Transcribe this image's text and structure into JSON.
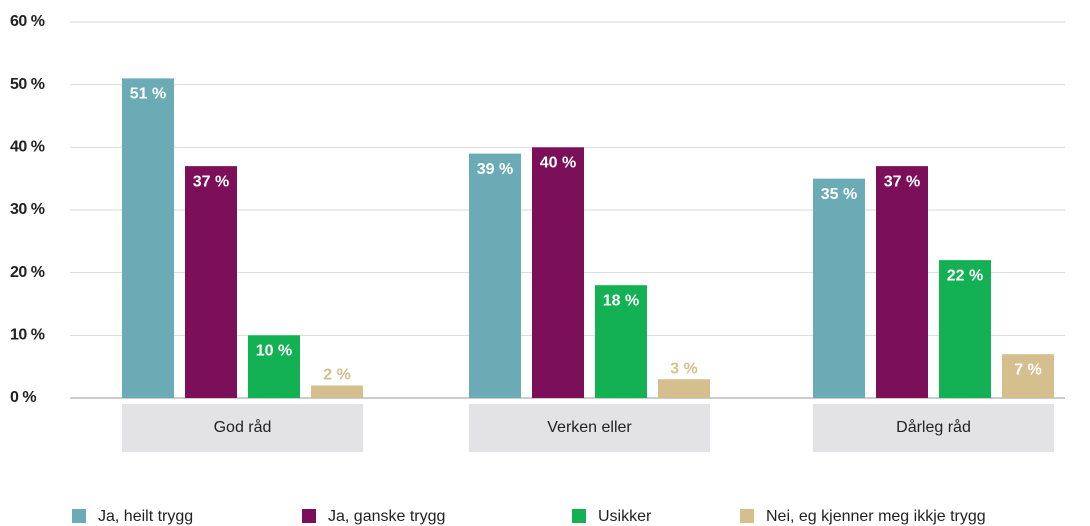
{
  "chart_data": {
    "type": "bar",
    "categories": [
      "God råd",
      "Verken eller",
      "Dårleg råd"
    ],
    "series": [
      {
        "name": "Ja, heilt trygg",
        "color": "#6aabb6",
        "values": [
          51,
          39,
          35
        ],
        "value_labels": [
          "51 %",
          "39 %",
          "35 %"
        ]
      },
      {
        "name": "Ja, ganske trygg",
        "color": "#7b0f5a",
        "values": [
          37,
          40,
          37
        ],
        "value_labels": [
          "37 %",
          "40 %",
          "37 %"
        ]
      },
      {
        "name": "Usikker",
        "color": "#13b153",
        "values": [
          10,
          18,
          22
        ],
        "value_labels": [
          "10 %",
          "18 %",
          "22 %"
        ]
      },
      {
        "name": "Nei, eg kjenner meg ikkje trygg",
        "color": "#d5bf8f",
        "values": [
          2,
          3,
          7
        ],
        "value_labels": [
          "2 %",
          "3 %",
          "7 %"
        ]
      }
    ],
    "ylim": [
      0,
      60
    ],
    "yticks": [
      {
        "value": 0,
        "label": "0 %"
      },
      {
        "value": 10,
        "label": "10 %"
      },
      {
        "value": 20,
        "label": "20 %"
      },
      {
        "value": 30,
        "label": "30 %"
      },
      {
        "value": 40,
        "label": "40 %"
      },
      {
        "value": 50,
        "label": "50 %"
      },
      {
        "value": 60,
        "label": "60 %"
      }
    ],
    "grid": true,
    "legend": "bottom"
  }
}
